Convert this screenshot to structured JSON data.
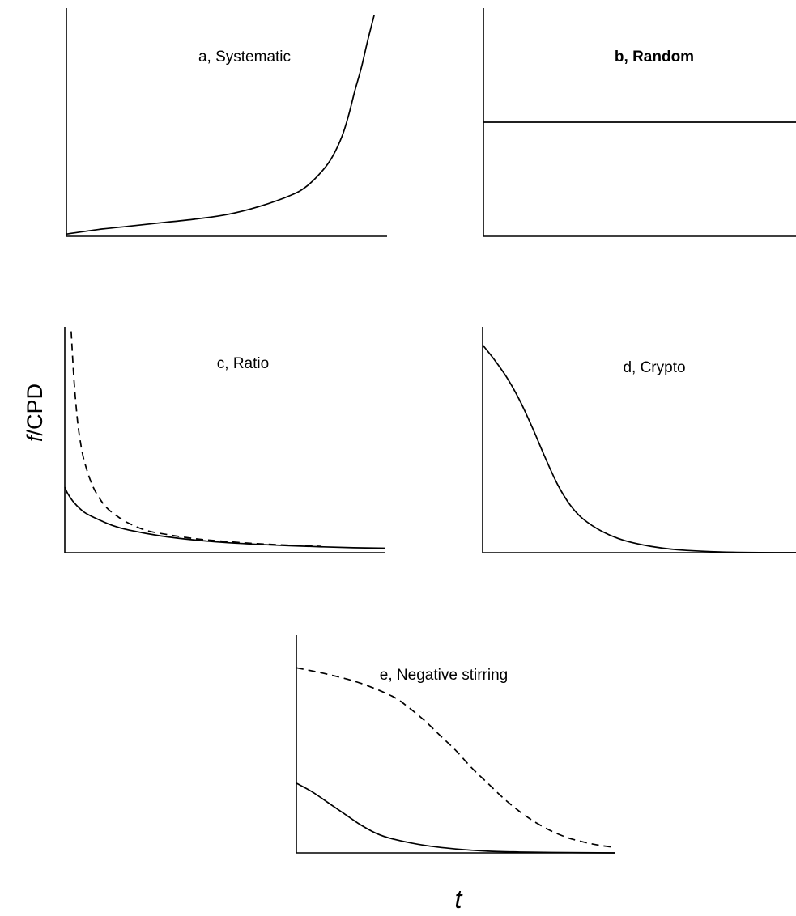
{
  "figure": {
    "ylabel_prefix": "f",
    "ylabel_suffix": "/CPD",
    "xlabel": "t"
  },
  "chart_data": [
    {
      "id": "a",
      "type": "line",
      "title": "a, Systematic",
      "title_bold": false,
      "xlabel": "t",
      "ylabel": "f/CPD",
      "ticks": "none",
      "xlim": [
        0,
        1
      ],
      "ylim": [
        0,
        1
      ],
      "series": [
        {
          "style": "solid",
          "x": [
            0.0,
            0.1,
            0.2,
            0.3,
            0.4,
            0.5,
            0.6,
            0.7,
            0.75,
            0.8,
            0.83,
            0.86,
            0.88,
            0.9,
            0.92,
            0.94,
            0.96
          ],
          "y": [
            0.01,
            0.03,
            0.045,
            0.06,
            0.075,
            0.095,
            0.13,
            0.18,
            0.22,
            0.29,
            0.35,
            0.44,
            0.53,
            0.64,
            0.74,
            0.86,
            0.97
          ]
        }
      ]
    },
    {
      "id": "b",
      "type": "line",
      "title": "b, Random",
      "title_bold": true,
      "xlabel": "t",
      "ylabel": "f/CPD",
      "ticks": "none",
      "xlim": [
        0,
        1
      ],
      "ylim": [
        0,
        1
      ],
      "series": [
        {
          "style": "solid",
          "x": [
            0.0,
            1.0
          ],
          "y": [
            0.5,
            0.5
          ]
        }
      ]
    },
    {
      "id": "c",
      "type": "line",
      "title": "c, Ratio",
      "title_bold": false,
      "xlabel": "t",
      "ylabel": "f/CPD",
      "ticks": "none",
      "xlim": [
        0,
        1
      ],
      "ylim": [
        0,
        1
      ],
      "series": [
        {
          "style": "solid",
          "x": [
            0.0,
            0.01,
            0.03,
            0.06,
            0.1,
            0.15,
            0.2,
            0.3,
            0.4,
            0.5,
            0.6,
            0.7,
            0.8,
            0.9,
            1.0
          ],
          "y": [
            0.29,
            0.26,
            0.22,
            0.18,
            0.15,
            0.12,
            0.1,
            0.074,
            0.057,
            0.045,
            0.037,
            0.031,
            0.026,
            0.022,
            0.02
          ]
        },
        {
          "style": "dashed",
          "x": [
            0.02,
            0.025,
            0.03,
            0.04,
            0.05,
            0.06,
            0.08,
            0.1,
            0.13,
            0.17,
            0.2,
            0.25,
            0.3,
            0.4,
            0.5,
            0.6,
            0.7,
            0.8
          ],
          "y": [
            0.98,
            0.85,
            0.74,
            0.58,
            0.48,
            0.41,
            0.32,
            0.26,
            0.2,
            0.155,
            0.13,
            0.1,
            0.085,
            0.063,
            0.05,
            0.04,
            0.033,
            0.028
          ]
        }
      ]
    },
    {
      "id": "d",
      "type": "line",
      "title": "d, Crypto",
      "title_bold": false,
      "xlabel": "t",
      "ylabel": "f/CPD",
      "ticks": "none",
      "xlim": [
        0,
        1
      ],
      "ylim": [
        0,
        1
      ],
      "series": [
        {
          "style": "solid",
          "x": [
            0.0,
            0.04,
            0.08,
            0.12,
            0.16,
            0.2,
            0.24,
            0.28,
            0.32,
            0.38,
            0.45,
            0.55,
            0.65,
            0.8,
            1.0
          ],
          "y": [
            0.92,
            0.85,
            0.77,
            0.67,
            0.55,
            0.42,
            0.3,
            0.21,
            0.15,
            0.095,
            0.055,
            0.025,
            0.01,
            0.002,
            0.0
          ]
        }
      ]
    },
    {
      "id": "e",
      "type": "line",
      "title": "e, Negative stirring",
      "title_bold": false,
      "xlabel": "t",
      "ylabel": "",
      "ticks": "none",
      "xlim": [
        0,
        1
      ],
      "ylim": [
        0,
        1
      ],
      "series": [
        {
          "style": "dashed",
          "x": [
            0.0,
            0.1,
            0.2,
            0.3,
            0.35,
            0.4,
            0.45,
            0.5,
            0.55,
            0.6,
            0.65,
            0.7,
            0.75,
            0.8,
            0.85,
            0.9,
            0.95,
            1.0
          ],
          "y": [
            0.85,
            0.82,
            0.78,
            0.72,
            0.67,
            0.61,
            0.54,
            0.47,
            0.39,
            0.32,
            0.25,
            0.19,
            0.14,
            0.1,
            0.07,
            0.05,
            0.035,
            0.025
          ]
        },
        {
          "style": "solid",
          "x": [
            0.0,
            0.05,
            0.1,
            0.15,
            0.2,
            0.25,
            0.3,
            0.4,
            0.5,
            0.6,
            0.7,
            0.8,
            1.0
          ],
          "y": [
            0.32,
            0.28,
            0.23,
            0.18,
            0.13,
            0.09,
            0.065,
            0.035,
            0.018,
            0.008,
            0.004,
            0.002,
            0.0
          ]
        }
      ]
    }
  ]
}
